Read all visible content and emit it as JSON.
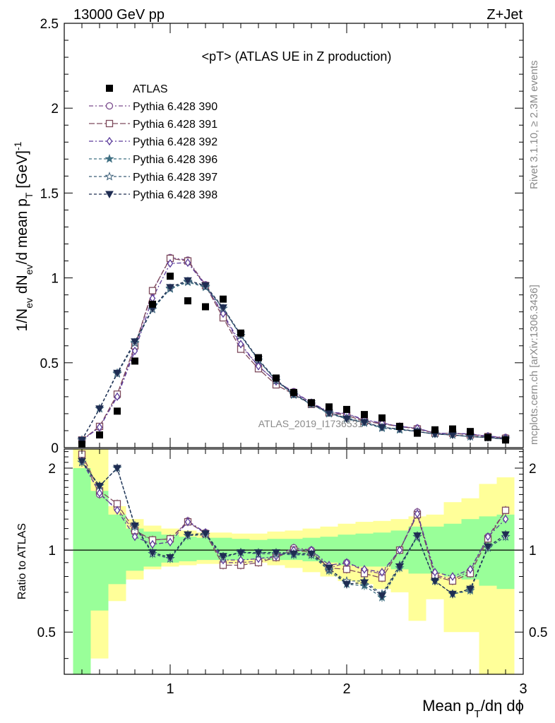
{
  "header": {
    "left": "13000 GeV pp",
    "right": "Z+Jet"
  },
  "annotations": {
    "plot_title": "<pT> (ATLAS UE in Z production)",
    "analysis_id": "ATLAS_2019_I1736531",
    "rivet": "Rivet 3.1.10, ≥ 2.3M events",
    "mcplots": "mcplots.cern.ch [arXiv:1306.3436]"
  },
  "axes": {
    "main_ylabel": "1/N_ev dN_ev/d mean p_T [GeV]^-1",
    "ratio_ylabel": "Ratio to ATLAS",
    "xlabel": "Mean p_T/dη dϕ",
    "main_yticks": [
      "0",
      "0.5",
      "1",
      "1.5",
      "2",
      "2.5"
    ],
    "ratio_yticks": [
      "0.5",
      "1",
      "2"
    ],
    "xticks": [
      "1",
      "2",
      "3"
    ]
  },
  "chart_data": {
    "type": "scatter",
    "x": [
      0.5,
      0.6,
      0.7,
      0.8,
      0.9,
      1.0,
      1.1,
      1.2,
      1.3,
      1.4,
      1.5,
      1.6,
      1.7,
      1.8,
      1.9,
      2.0,
      2.1,
      2.2,
      2.3,
      2.4,
      2.5,
      2.6,
      2.7,
      2.8,
      2.9
    ],
    "xlim": [
      0.4,
      3.0
    ],
    "ylim_main": [
      0,
      2.5
    ],
    "ylim_ratio": [
      0.35,
      2.35
    ],
    "ratio_log": true,
    "data": {
      "name": "ATLAS",
      "color": "#000000",
      "marker": "square",
      "values": [
        0.02,
        0.075,
        0.215,
        0.51,
        0.845,
        1.01,
        0.865,
        0.83,
        0.875,
        0.675,
        0.53,
        0.41,
        0.325,
        0.265,
        0.24,
        0.225,
        0.195,
        0.175,
        0.125,
        0.085,
        0.105,
        0.11,
        0.095,
        0.06,
        0.045
      ]
    },
    "series": [
      {
        "name": "Pythia 6.428 390",
        "color": "#7a4a8c",
        "marker": "circle-open",
        "dash": "6,3,2,3",
        "values": [
          0.045,
          0.12,
          0.305,
          0.59,
          0.92,
          1.12,
          1.105,
          0.96,
          0.78,
          0.6,
          0.48,
          0.39,
          0.33,
          0.265,
          0.205,
          0.2,
          0.16,
          0.145,
          0.125,
          0.115,
          0.085,
          0.085,
          0.08,
          0.068,
          0.06
        ]
      },
      {
        "name": "Pythia 6.428 391",
        "color": "#7d4a5c",
        "marker": "square-open",
        "dash": "8,3",
        "values": [
          0.045,
          0.125,
          0.315,
          0.6,
          0.925,
          1.115,
          1.1,
          0.955,
          0.765,
          0.58,
          0.465,
          0.37,
          0.315,
          0.255,
          0.205,
          0.19,
          0.155,
          0.14,
          0.125,
          0.11,
          0.085,
          0.085,
          0.075,
          0.065,
          0.055
        ]
      },
      {
        "name": "Pythia 6.428 392",
        "color": "#5a3a9a",
        "marker": "diamond-open",
        "dash": "6,3,2,3",
        "values": [
          0.043,
          0.12,
          0.3,
          0.57,
          0.88,
          1.085,
          1.09,
          0.955,
          0.79,
          0.61,
          0.48,
          0.39,
          0.325,
          0.265,
          0.21,
          0.2,
          0.165,
          0.145,
          0.125,
          0.115,
          0.085,
          0.085,
          0.08,
          0.067,
          0.058
        ]
      },
      {
        "name": "Pythia 6.428 396",
        "color": "#3f6f82",
        "marker": "star",
        "dash": "4,3",
        "values": [
          0.045,
          0.23,
          0.44,
          0.62,
          0.815,
          0.935,
          0.975,
          0.945,
          0.82,
          0.66,
          0.515,
          0.395,
          0.31,
          0.255,
          0.2,
          0.17,
          0.145,
          0.115,
          0.105,
          0.095,
          0.08,
          0.075,
          0.065,
          0.06,
          0.05
        ]
      },
      {
        "name": "Pythia 6.428 397",
        "color": "#3a5e78",
        "marker": "star-open",
        "dash": "4,3",
        "values": [
          0.045,
          0.23,
          0.435,
          0.615,
          0.815,
          0.94,
          0.98,
          0.95,
          0.82,
          0.66,
          0.515,
          0.395,
          0.315,
          0.255,
          0.205,
          0.175,
          0.15,
          0.12,
          0.11,
          0.095,
          0.08,
          0.075,
          0.065,
          0.06,
          0.05
        ]
      },
      {
        "name": "Pythia 6.428 398",
        "color": "#1f2d52",
        "marker": "triangle-down",
        "dash": "4,3",
        "values": [
          0.044,
          0.23,
          0.44,
          0.625,
          0.82,
          0.945,
          0.985,
          0.955,
          0.825,
          0.665,
          0.52,
          0.4,
          0.315,
          0.26,
          0.205,
          0.17,
          0.15,
          0.12,
          0.11,
          0.095,
          0.08,
          0.075,
          0.065,
          0.06,
          0.05
        ]
      }
    ],
    "ratios": [
      [
        2.2,
        1.6,
        1.42,
        1.16,
        1.09,
        1.1,
        1.28,
        1.16,
        0.9,
        0.9,
        0.91,
        0.95,
        1.02,
        1.0,
        0.86,
        0.9,
        0.84,
        0.82,
        1.0,
        1.38,
        0.81,
        0.78,
        0.84,
        1.12,
        1.4
      ],
      [
        2.25,
        1.65,
        1.48,
        1.18,
        1.09,
        1.1,
        1.27,
        1.15,
        0.88,
        0.88,
        0.9,
        0.94,
        1.0,
        0.98,
        0.86,
        0.85,
        0.82,
        0.79,
        1.0,
        1.35,
        0.8,
        0.77,
        0.82,
        1.1,
        1.4
      ],
      [
        2.12,
        1.62,
        1.4,
        1.12,
        1.05,
        1.07,
        1.27,
        1.16,
        0.92,
        0.92,
        0.93,
        0.95,
        1.0,
        1.0,
        0.88,
        0.9,
        0.85,
        0.83,
        1.0,
        1.36,
        0.83,
        0.8,
        0.85,
        1.12,
        1.3
      ],
      [
        2.1,
        1.72,
        2.0,
        1.23,
        0.97,
        0.93,
        1.13,
        1.14,
        0.94,
        0.98,
        0.97,
        0.97,
        0.96,
        0.96,
        0.84,
        0.75,
        0.74,
        0.67,
        0.86,
        1.12,
        0.77,
        0.69,
        0.71,
        1.02,
        1.12
      ],
      [
        2.1,
        1.72,
        2.0,
        1.22,
        0.97,
        0.93,
        1.13,
        1.14,
        0.94,
        0.98,
        0.97,
        0.97,
        0.97,
        0.96,
        0.85,
        0.77,
        0.77,
        0.69,
        0.88,
        1.12,
        0.77,
        0.69,
        0.72,
        1.02,
        1.12
      ],
      [
        2.12,
        1.72,
        2.0,
        1.23,
        0.98,
        0.94,
        1.14,
        1.15,
        0.95,
        0.98,
        0.98,
        0.98,
        0.97,
        0.97,
        0.86,
        0.75,
        0.76,
        0.68,
        0.87,
        1.13,
        0.77,
        0.69,
        0.72,
        1.03,
        1.14
      ]
    ],
    "band_inner": [
      {
        "lo": 0.3,
        "hi": 2.0
      },
      {
        "lo": 0.6,
        "hi": 1.65
      },
      {
        "lo": 0.75,
        "hi": 1.35
      },
      {
        "lo": 0.84,
        "hi": 1.2
      },
      {
        "lo": 0.87,
        "hi": 1.17
      },
      {
        "lo": 0.9,
        "hi": 1.14
      },
      {
        "lo": 0.91,
        "hi": 1.12
      },
      {
        "lo": 0.92,
        "hi": 1.11
      },
      {
        "lo": 0.92,
        "hi": 1.11
      },
      {
        "lo": 0.92,
        "hi": 1.1
      },
      {
        "lo": 0.93,
        "hi": 1.09
      },
      {
        "lo": 0.92,
        "hi": 1.1
      },
      {
        "lo": 0.92,
        "hi": 1.1
      },
      {
        "lo": 0.91,
        "hi": 1.11
      },
      {
        "lo": 0.9,
        "hi": 1.12
      },
      {
        "lo": 0.88,
        "hi": 1.14
      },
      {
        "lo": 0.87,
        "hi": 1.15
      },
      {
        "lo": 0.87,
        "hi": 1.16
      },
      {
        "lo": 0.85,
        "hi": 1.18
      },
      {
        "lo": 0.82,
        "hi": 1.22
      },
      {
        "lo": 0.82,
        "hi": 1.22
      },
      {
        "lo": 0.8,
        "hi": 1.25
      },
      {
        "lo": 0.78,
        "hi": 1.3
      },
      {
        "lo": 0.74,
        "hi": 1.33
      },
      {
        "lo": 0.72,
        "hi": 1.35
      }
    ],
    "band_outer": [
      {
        "lo": 0.3,
        "hi": 2.35
      },
      {
        "lo": 0.4,
        "hi": 2.35
      },
      {
        "lo": 0.65,
        "hi": 1.45
      },
      {
        "lo": 0.78,
        "hi": 1.3
      },
      {
        "lo": 0.85,
        "hi": 1.23
      },
      {
        "lo": 0.87,
        "hi": 1.2
      },
      {
        "lo": 0.88,
        "hi": 1.18
      },
      {
        "lo": 0.89,
        "hi": 1.16
      },
      {
        "lo": 0.89,
        "hi": 1.16
      },
      {
        "lo": 0.89,
        "hi": 1.15
      },
      {
        "lo": 0.9,
        "hi": 1.15
      },
      {
        "lo": 0.88,
        "hi": 1.17
      },
      {
        "lo": 0.86,
        "hi": 1.18
      },
      {
        "lo": 0.83,
        "hi": 1.2
      },
      {
        "lo": 0.8,
        "hi": 1.22
      },
      {
        "lo": 0.77,
        "hi": 1.25
      },
      {
        "lo": 0.75,
        "hi": 1.27
      },
      {
        "lo": 0.72,
        "hi": 1.28
      },
      {
        "lo": 0.7,
        "hi": 1.3
      },
      {
        "lo": 0.55,
        "hi": 1.33
      },
      {
        "lo": 0.66,
        "hi": 1.35
      },
      {
        "lo": 0.5,
        "hi": 1.5
      },
      {
        "lo": 0.5,
        "hi": 1.55
      },
      {
        "lo": 0.35,
        "hi": 1.75
      },
      {
        "lo": 0.35,
        "hi": 1.85
      }
    ]
  }
}
